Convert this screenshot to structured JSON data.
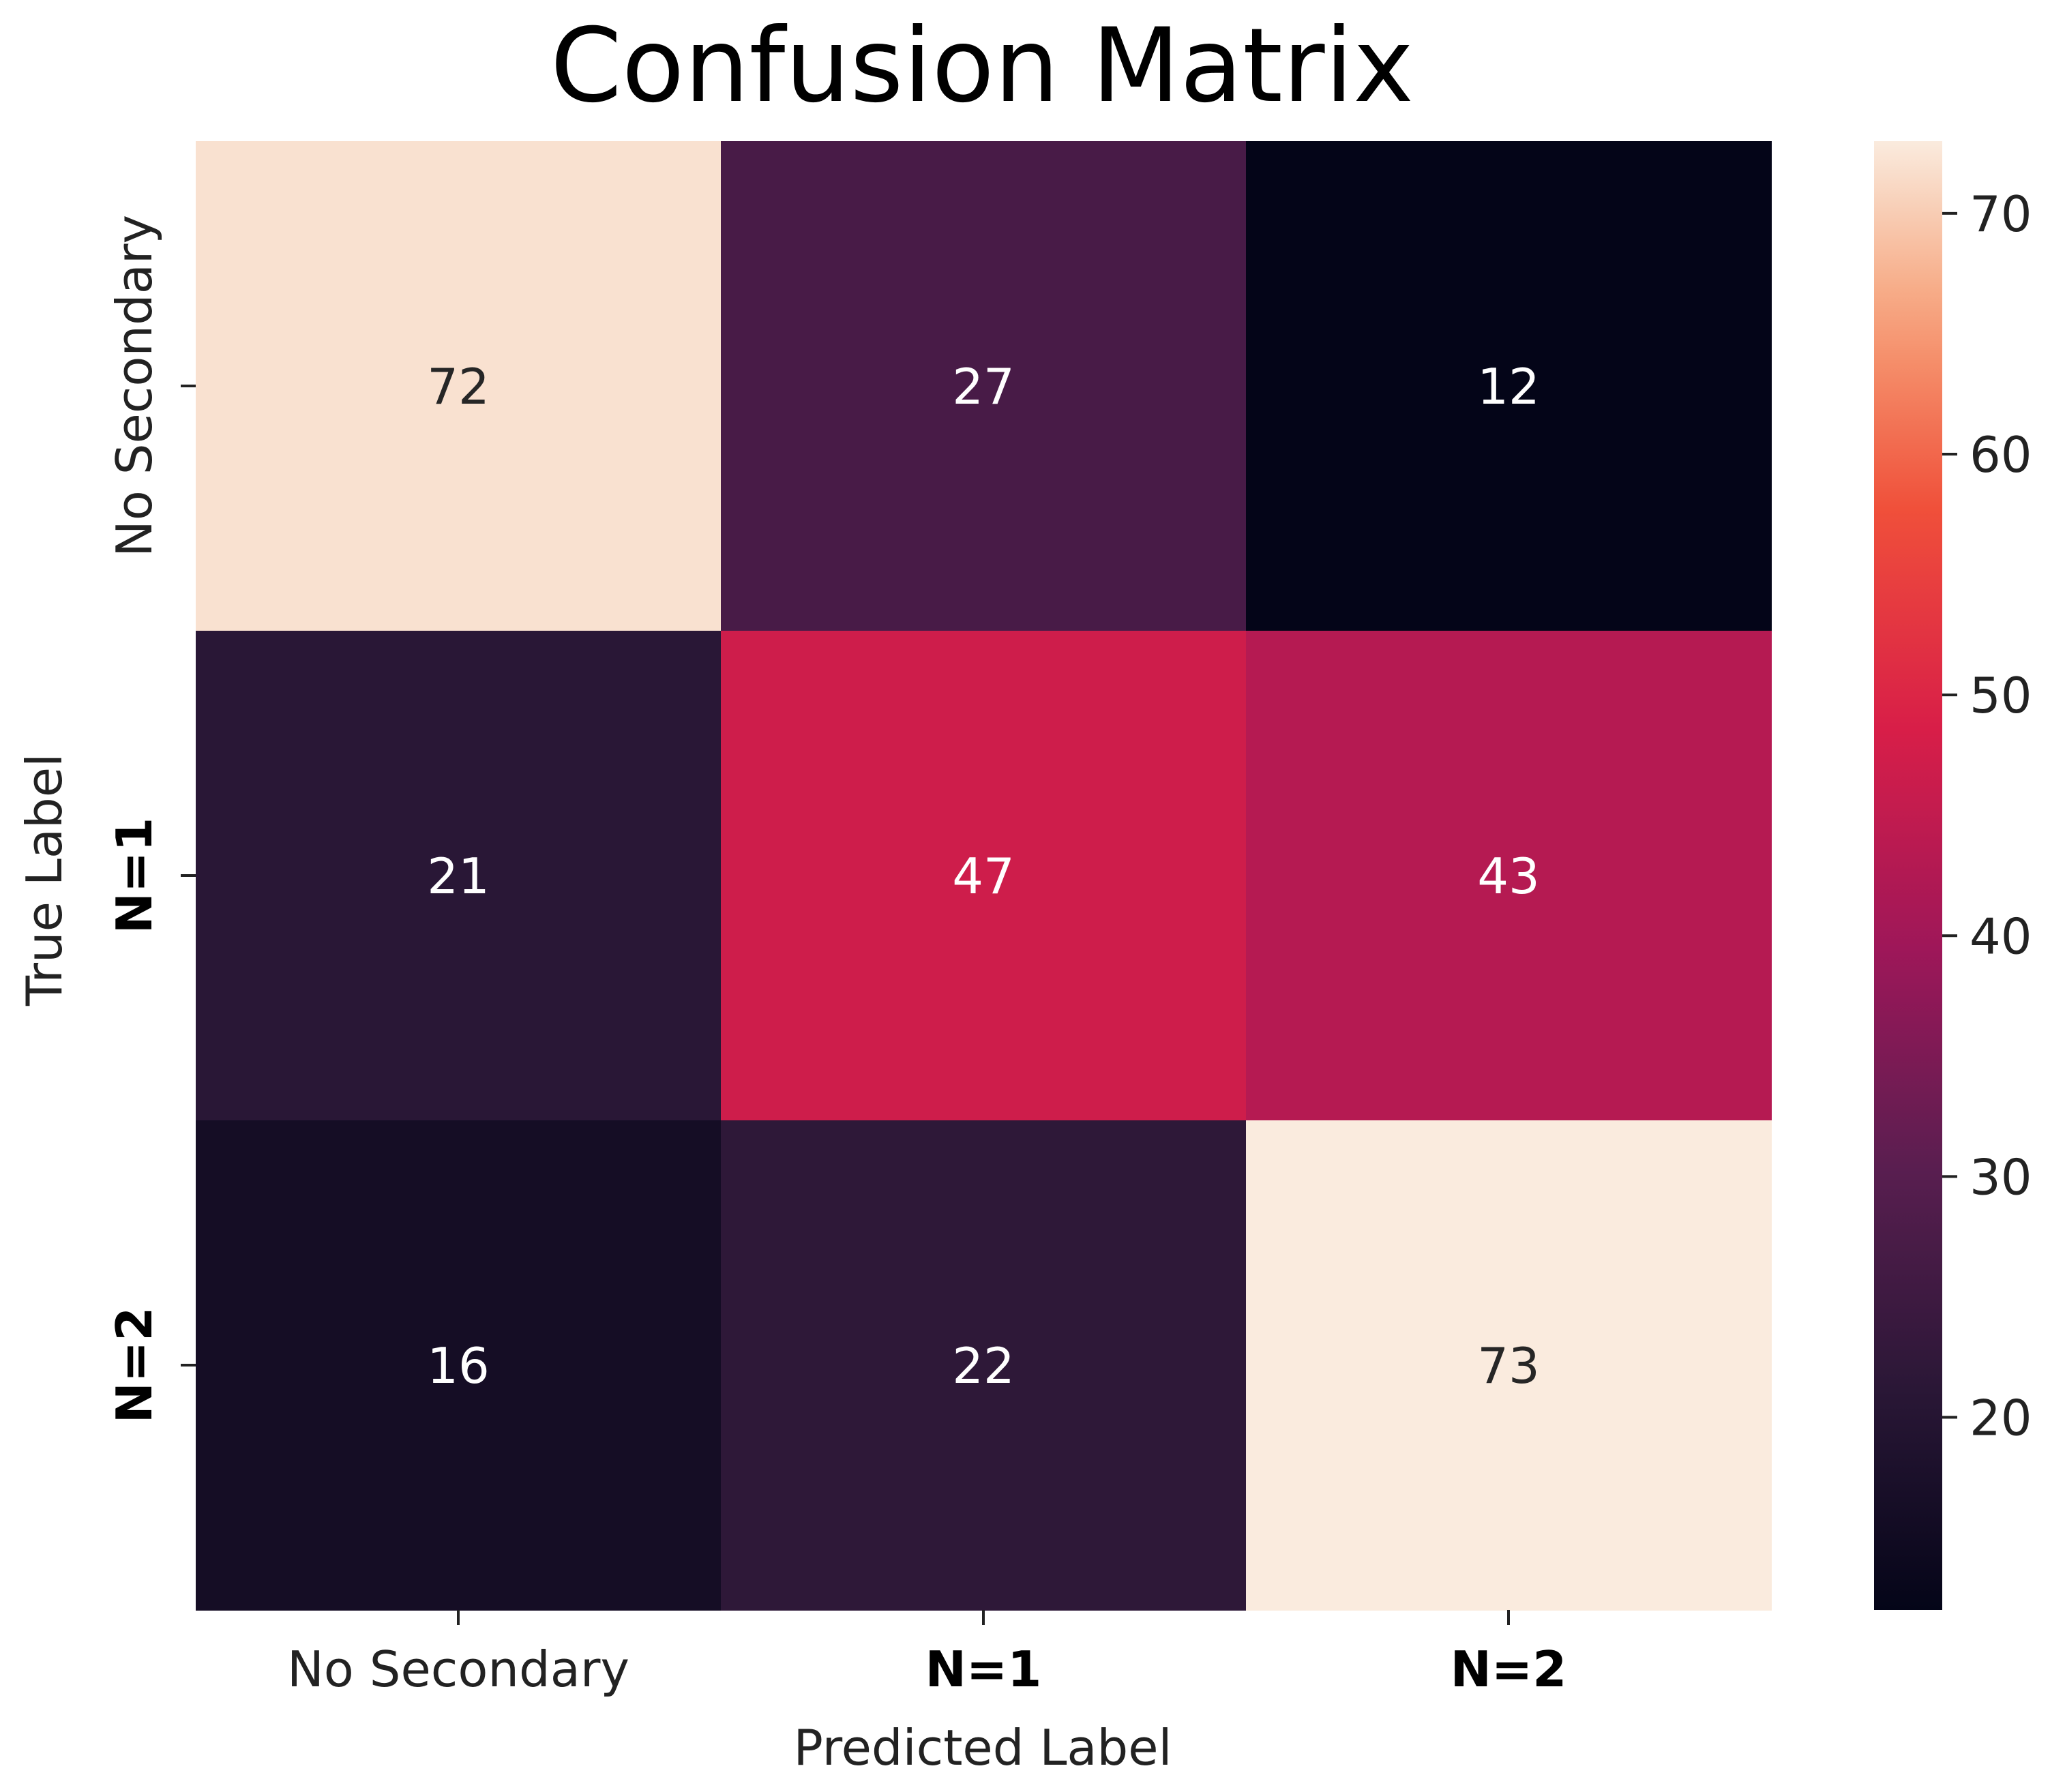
{
  "chart_data": {
    "type": "heatmap",
    "title": "Confusion Matrix",
    "xlabel": "Predicted Label",
    "ylabel": "True Label",
    "x_categories": [
      "No Secondary",
      "N=1",
      "N=2"
    ],
    "y_categories": [
      "No Secondary",
      "N=1",
      "N=2"
    ],
    "bold_categories": [
      "N=1",
      "N=2"
    ],
    "values": [
      [
        72,
        27,
        12
      ],
      [
        21,
        47,
        43
      ],
      [
        16,
        22,
        73
      ]
    ],
    "colorbar": {
      "colormap": "rocket",
      "range": [
        12,
        73
      ],
      "ticks": [
        20,
        30,
        40,
        50,
        60,
        70
      ]
    },
    "grid": false
  }
}
